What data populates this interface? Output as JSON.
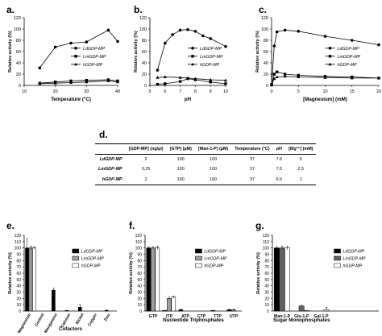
{
  "chart_data": [
    {
      "panel": "a.",
      "type": "line",
      "xlabel": "Temperature (°C)",
      "ylabel": "Relative activity (%)",
      "xlim": [
        10,
        40
      ],
      "ylim": [
        0,
        120
      ],
      "xticks": [
        10,
        20,
        30,
        40
      ],
      "yticks": [
        0,
        20,
        40,
        60,
        80,
        100,
        120
      ],
      "legend_position": "center-right",
      "series": [
        {
          "name": "LdGDP-MP",
          "marker": "circle",
          "x": [
            15,
            20,
            25,
            30,
            37,
            40
          ],
          "y": [
            31,
            68,
            75,
            77,
            98,
            78
          ]
        },
        {
          "name": "LmGDP-MP",
          "marker": "square",
          "x": [
            15,
            20,
            25,
            30,
            37,
            40
          ],
          "y": [
            4,
            6,
            8,
            9,
            10,
            8
          ]
        },
        {
          "name": "hGDP-MP",
          "marker": "triangle",
          "x": [
            15,
            20,
            25,
            30,
            37,
            40
          ],
          "y": [
            3,
            4,
            5,
            6,
            8,
            6
          ]
        }
      ]
    },
    {
      "panel": "b.",
      "type": "line",
      "xlabel": "pH",
      "ylabel": "Relative activity (%)",
      "xlim": [
        5,
        10
      ],
      "ylim": [
        0,
        120
      ],
      "xticks": [
        5,
        6,
        7,
        8,
        9,
        10
      ],
      "yticks": [
        0,
        20,
        40,
        60,
        80,
        100,
        120
      ],
      "legend_position": "center-right",
      "series": [
        {
          "name": "LdGDP-MP",
          "marker": "circle",
          "x": [
            5.5,
            6,
            6.5,
            7,
            7.5,
            8,
            8.5,
            9,
            10
          ],
          "y": [
            27,
            75,
            90,
            98,
            99,
            96,
            88,
            83,
            69
          ]
        },
        {
          "name": "LmGDP-MP",
          "marker": "square",
          "x": [
            5.5,
            6,
            7,
            7.5,
            8,
            9,
            10
          ],
          "y": [
            2,
            3,
            7,
            12,
            10,
            6,
            3
          ]
        },
        {
          "name": "hGDP-MP",
          "marker": "triangle",
          "x": [
            5.5,
            6,
            7,
            7.5,
            8,
            9,
            10
          ],
          "y": [
            14,
            15,
            14,
            13,
            12,
            10,
            9
          ]
        }
      ]
    },
    {
      "panel": "c.",
      "type": "line",
      "xlabel": "[Magnesium] (mM)",
      "ylabel": "Relative activity (%)",
      "xlim": [
        0,
        20
      ],
      "ylim": [
        0,
        120
      ],
      "xticks": [
        0,
        5,
        10,
        15,
        20
      ],
      "yticks": [
        0,
        20,
        40,
        60,
        80,
        100,
        120
      ],
      "legend_position": "center-right",
      "series": [
        {
          "name": "LdGDP-MP",
          "marker": "circle",
          "x": [
            0,
            0.5,
            1,
            2.5,
            5,
            10,
            15,
            20
          ],
          "y": [
            2,
            70,
            95,
            98,
            96,
            87,
            80,
            72
          ]
        },
        {
          "name": "LmGDP-MP",
          "marker": "square",
          "x": [
            0,
            0.5,
            1,
            2.5,
            5,
            10,
            15,
            20
          ],
          "y": [
            1,
            20,
            24,
            20,
            18,
            16,
            15,
            13
          ]
        },
        {
          "name": "hGDP-MP",
          "marker": "triangle",
          "x": [
            0,
            0.5,
            1,
            2.5,
            5,
            10,
            15,
            20
          ],
          "y": [
            1,
            12,
            15,
            16,
            15,
            14,
            13,
            13
          ]
        }
      ]
    },
    {
      "panel": "d.",
      "type": "table",
      "columns": [
        "",
        "[GDP-MP] (ng/µl)",
        "[GTP] (µM)",
        "[Man-1-P] (µM)",
        "Temperature (°C)",
        "pH",
        "[Mg²⁺] (mM)"
      ],
      "rows": [
        [
          "LdGDP-MP",
          "2",
          "100",
          "100",
          "37",
          "7.6",
          "5"
        ],
        [
          "LmGDP-MP",
          "0,25",
          "100",
          "100",
          "37",
          "7.5",
          "2.5"
        ],
        [
          "hGDP-MP",
          "2",
          "100",
          "100",
          "37",
          "6.5",
          "1"
        ]
      ]
    },
    {
      "panel": "e.",
      "type": "bar",
      "xlabel": "Cofactors",
      "ylabel": "Relative activity (%)",
      "ylim": [
        0,
        120
      ],
      "yticks": [
        0,
        10,
        20,
        30,
        40,
        50,
        60,
        70,
        80,
        90,
        100,
        110,
        120
      ],
      "legend_position": "top-right",
      "categories": [
        "Magnesium",
        "Control",
        "Manganese",
        "Calcium",
        "Nickel",
        "Copper",
        "Zinc"
      ],
      "series": [
        {
          "name": "LdGDP-MP",
          "color": "#000000",
          "values": [
            100,
            0,
            33,
            1,
            6,
            0,
            1
          ],
          "errors": [
            15,
            0,
            3,
            0,
            4,
            0,
            1
          ]
        },
        {
          "name": "LmGDP-MP",
          "color": "#9e9e9e",
          "values": [
            100,
            0,
            0,
            0,
            0,
            0,
            0
          ],
          "errors": [
            3,
            0,
            0,
            0,
            0,
            0,
            0
          ]
        },
        {
          "name": "hGDP-MP",
          "color": "#ffffff",
          "values": [
            100,
            0,
            0,
            0,
            0,
            0,
            0
          ],
          "errors": [
            2,
            0,
            0,
            0,
            0,
            0,
            0
          ]
        }
      ]
    },
    {
      "panel": "f.",
      "type": "bar",
      "xlabel": "Nucleotide Triphosphates",
      "ylabel": "Relative activity (%)",
      "ylim": [
        0,
        120
      ],
      "yticks": [
        0,
        10,
        20,
        30,
        40,
        50,
        60,
        70,
        80,
        90,
        100,
        110,
        120
      ],
      "legend_position": "top-right",
      "categories": [
        "GTP",
        "ITP",
        "ATP",
        "CTP",
        "TTP",
        "UTP"
      ],
      "series": [
        {
          "name": "LdGDP-MP",
          "color": "#000000",
          "values": [
            100,
            1,
            2,
            0,
            1,
            2
          ],
          "errors": [
            2,
            0,
            1,
            0,
            0,
            1
          ]
        },
        {
          "name": "LmGDP-MP",
          "color": "#9e9e9e",
          "values": [
            100,
            20,
            0,
            0,
            0,
            2
          ],
          "errors": [
            2,
            2,
            0,
            0,
            0,
            1
          ]
        },
        {
          "name": "hGDP-MP",
          "color": "#ffffff",
          "values": [
            100,
            22,
            0,
            0,
            0,
            0
          ],
          "errors": [
            3,
            2,
            0,
            0,
            0,
            0
          ]
        }
      ]
    },
    {
      "panel": "g.",
      "type": "bar",
      "xlabel": "Sugar Monophosphates",
      "ylabel": "Relative activity (%)",
      "ylim": [
        0,
        120
      ],
      "yticks": [
        0,
        10,
        20,
        30,
        40,
        50,
        60,
        70,
        80,
        90,
        100,
        110,
        120
      ],
      "legend_position": "top-right",
      "categories": [
        "Man-1-P",
        "Glu-1-P",
        "Gal-1-P"
      ],
      "series": [
        {
          "name": "LdGDP-MP",
          "color": "#000000",
          "values": [
            100,
            0,
            0
          ],
          "errors": [
            2,
            0,
            0
          ]
        },
        {
          "name": "LmGDP-MP",
          "color": "#636363",
          "values": [
            100,
            8,
            0
          ],
          "errors": [
            3,
            1,
            0
          ]
        },
        {
          "name": "hGDP-MP",
          "color": "#ffffff",
          "values": [
            100,
            1,
            2
          ],
          "errors": [
            3,
            0,
            4
          ]
        }
      ]
    }
  ]
}
